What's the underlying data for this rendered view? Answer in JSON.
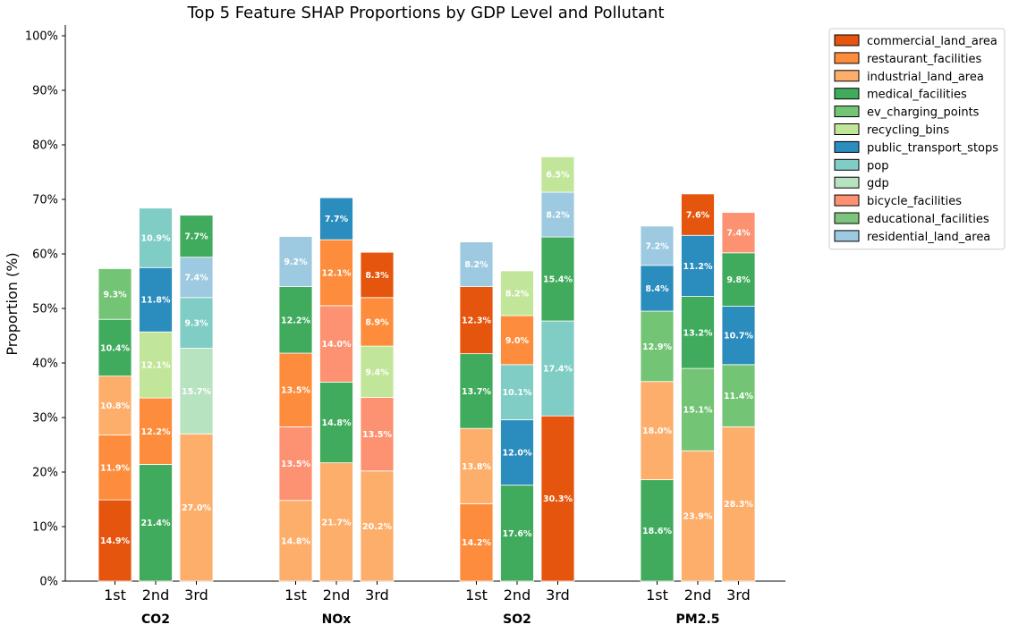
{
  "chart_data": {
    "type": "bar",
    "stacked": true,
    "title": "Top 5 Feature SHAP Proportions by GDP Level and Pollutant",
    "ylabel": "Proportion (%)",
    "ylim": [
      0,
      100
    ],
    "yticks": [
      "0%",
      "10%",
      "20%",
      "30%",
      "40%",
      "50%",
      "60%",
      "70%",
      "80%",
      "90%",
      "100%"
    ],
    "groups": [
      {
        "name": "CO2",
        "bars": [
          {
            "label": "1st",
            "segments": [
              {
                "feature": "commercial_land_area",
                "value": 14.9,
                "text": "14.9%"
              },
              {
                "feature": "restaurant_facilities",
                "value": 11.9,
                "text": "11.9%"
              },
              {
                "feature": "industrial_land_area",
                "value": 10.8,
                "text": "10.8%"
              },
              {
                "feature": "medical_facilities",
                "value": 10.4,
                "text": "10.4%"
              },
              {
                "feature": "ev_charging_points",
                "value": 9.3,
                "text": "9.3%"
              }
            ]
          },
          {
            "label": "2nd",
            "segments": [
              {
                "feature": "medical_facilities",
                "value": 21.4,
                "text": "21.4%"
              },
              {
                "feature": "restaurant_facilities",
                "value": 12.2,
                "text": "12.2%"
              },
              {
                "feature": "recycling_bins",
                "value": 12.1,
                "text": "12.1%"
              },
              {
                "feature": "public_transport_stops",
                "value": 11.8,
                "text": "11.8%"
              },
              {
                "feature": "pop",
                "value": 10.9,
                "text": "10.9%"
              }
            ]
          },
          {
            "label": "3rd",
            "segments": [
              {
                "feature": "industrial_land_area",
                "value": 27.0,
                "text": "27.0%"
              },
              {
                "feature": "gdp",
                "value": 15.7,
                "text": "15.7%"
              },
              {
                "feature": "pop",
                "value": 9.3,
                "text": "9.3%"
              },
              {
                "feature": "residential_land_area",
                "value": 7.4,
                "text": "7.4%"
              },
              {
                "feature": "medical_facilities",
                "value": 7.7,
                "text": "7.7%"
              }
            ]
          }
        ]
      },
      {
        "name": "NOx",
        "bars": [
          {
            "label": "1st",
            "segments": [
              {
                "feature": "industrial_land_area",
                "value": 14.8,
                "text": "14.8%"
              },
              {
                "feature": "bicycle_facilities",
                "value": 13.5,
                "text": "13.5%"
              },
              {
                "feature": "restaurant_facilities",
                "value": 13.5,
                "text": "13.5%"
              },
              {
                "feature": "medical_facilities",
                "value": 12.2,
                "text": "12.2%"
              },
              {
                "feature": "residential_land_area",
                "value": 9.2,
                "text": "9.2%"
              }
            ]
          },
          {
            "label": "2nd",
            "segments": [
              {
                "feature": "industrial_land_area",
                "value": 21.7,
                "text": "21.7%"
              },
              {
                "feature": "medical_facilities",
                "value": 14.8,
                "text": "14.8%"
              },
              {
                "feature": "bicycle_facilities",
                "value": 14.0,
                "text": "14.0%"
              },
              {
                "feature": "restaurant_facilities",
                "value": 12.1,
                "text": "12.1%"
              },
              {
                "feature": "public_transport_stops",
                "value": 7.7,
                "text": "7.7%"
              }
            ]
          },
          {
            "label": "3rd",
            "segments": [
              {
                "feature": "industrial_land_area",
                "value": 20.2,
                "text": "20.2%"
              },
              {
                "feature": "bicycle_facilities",
                "value": 13.5,
                "text": "13.5%"
              },
              {
                "feature": "recycling_bins",
                "value": 9.4,
                "text": "9.4%"
              },
              {
                "feature": "restaurant_facilities",
                "value": 8.9,
                "text": "8.9%"
              },
              {
                "feature": "commercial_land_area",
                "value": 8.3,
                "text": "8.3%"
              }
            ]
          }
        ]
      },
      {
        "name": "SO2",
        "bars": [
          {
            "label": "1st",
            "segments": [
              {
                "feature": "restaurant_facilities",
                "value": 14.2,
                "text": "14.2%"
              },
              {
                "feature": "industrial_land_area",
                "value": 13.8,
                "text": "13.8%"
              },
              {
                "feature": "medical_facilities",
                "value": 13.7,
                "text": "13.7%"
              },
              {
                "feature": "commercial_land_area",
                "value": 12.3,
                "text": "12.3%"
              },
              {
                "feature": "residential_land_area",
                "value": 8.2,
                "text": "8.2%"
              }
            ]
          },
          {
            "label": "2nd",
            "segments": [
              {
                "feature": "medical_facilities",
                "value": 17.6,
                "text": "17.6%"
              },
              {
                "feature": "public_transport_stops",
                "value": 12.0,
                "text": "12.0%"
              },
              {
                "feature": "pop",
                "value": 10.1,
                "text": "10.1%"
              },
              {
                "feature": "restaurant_facilities",
                "value": 9.0,
                "text": "9.0%"
              },
              {
                "feature": "recycling_bins",
                "value": 8.2,
                "text": "8.2%"
              }
            ]
          },
          {
            "label": "3rd",
            "segments": [
              {
                "feature": "commercial_land_area",
                "value": 30.3,
                "text": "30.3%"
              },
              {
                "feature": "pop",
                "value": 17.4,
                "text": "17.4%"
              },
              {
                "feature": "medical_facilities",
                "value": 15.4,
                "text": "15.4%"
              },
              {
                "feature": "residential_land_area",
                "value": 8.2,
                "text": "8.2%"
              },
              {
                "feature": "recycling_bins",
                "value": 6.5,
                "text": "6.5%"
              }
            ]
          }
        ]
      },
      {
        "name": "PM2.5",
        "bars": [
          {
            "label": "1st",
            "segments": [
              {
                "feature": "medical_facilities",
                "value": 18.6,
                "text": "18.6%"
              },
              {
                "feature": "industrial_land_area",
                "value": 18.0,
                "text": "18.0%"
              },
              {
                "feature": "ev_charging_points",
                "value": 12.9,
                "text": "12.9%"
              },
              {
                "feature": "public_transport_stops",
                "value": 8.4,
                "text": "8.4%"
              },
              {
                "feature": "residential_land_area",
                "value": 7.2,
                "text": "7.2%"
              }
            ]
          },
          {
            "label": "2nd",
            "segments": [
              {
                "feature": "industrial_land_area",
                "value": 23.9,
                "text": "23.9%"
              },
              {
                "feature": "ev_charging_points",
                "value": 15.1,
                "text": "15.1%"
              },
              {
                "feature": "medical_facilities",
                "value": 13.2,
                "text": "13.2%"
              },
              {
                "feature": "public_transport_stops",
                "value": 11.2,
                "text": "11.2%"
              },
              {
                "feature": "commercial_land_area",
                "value": 7.6,
                "text": "7.6%"
              }
            ]
          },
          {
            "label": "3rd",
            "segments": [
              {
                "feature": "industrial_land_area",
                "value": 28.3,
                "text": "28.3%"
              },
              {
                "feature": "ev_charging_points",
                "value": 11.4,
                "text": "11.4%"
              },
              {
                "feature": "public_transport_stops",
                "value": 10.7,
                "text": "10.7%"
              },
              {
                "feature": "medical_facilities",
                "value": 9.8,
                "text": "9.8%"
              },
              {
                "feature": "bicycle_facilities",
                "value": 7.4,
                "text": "7.4%"
              }
            ]
          }
        ]
      }
    ],
    "legend": {
      "placement": "outside-top-right",
      "entries": [
        {
          "feature": "commercial_land_area",
          "label": "commercial_land_area",
          "color": "#e6550d"
        },
        {
          "feature": "restaurant_facilities",
          "label": "restaurant_facilities",
          "color": "#fd8d3c"
        },
        {
          "feature": "industrial_land_area",
          "label": "industrial_land_area",
          "color": "#fdae6b"
        },
        {
          "feature": "medical_facilities",
          "label": "medical_facilities",
          "color": "#41ab5d"
        },
        {
          "feature": "ev_charging_points",
          "label": "ev_charging_points",
          "color": "#74c476"
        },
        {
          "feature": "recycling_bins",
          "label": "recycling_bins",
          "color": "#c2e699"
        },
        {
          "feature": "public_transport_stops",
          "label": "public_transport_stops",
          "color": "#2b8cbe"
        },
        {
          "feature": "pop",
          "label": "pop",
          "color": "#7fcdc4"
        },
        {
          "feature": "gdp",
          "label": "gdp",
          "color": "#b8e3c1"
        },
        {
          "feature": "bicycle_facilities",
          "label": "bicycle_facilities",
          "color": "#fc9272"
        },
        {
          "feature": "educational_facilities",
          "label": "educational_facilities",
          "color": "#7dc47c"
        },
        {
          "feature": "residential_land_area",
          "label": "residential_land_area",
          "color": "#9ecae1"
        }
      ]
    },
    "grid": false
  }
}
